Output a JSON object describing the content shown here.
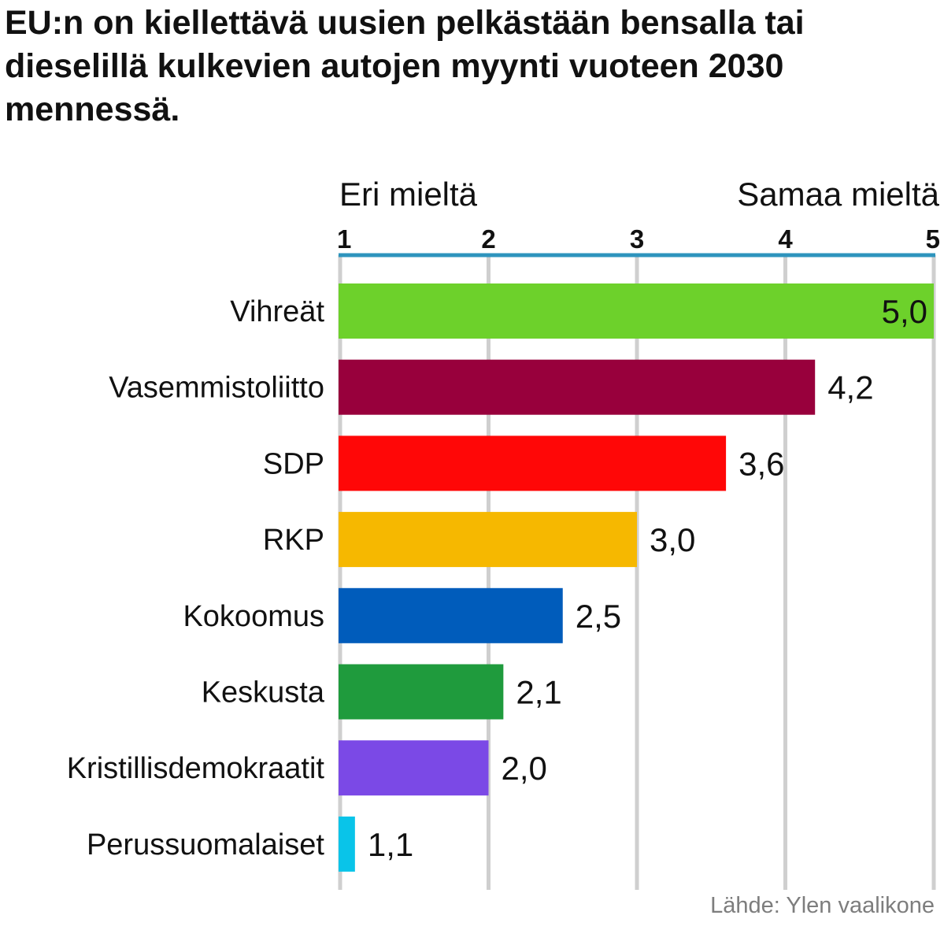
{
  "chart_data": {
    "type": "bar",
    "orientation": "horizontal",
    "title": "EU:n on kiellettävä uusien pelkästään bensalla tai dieselillä kulkevien autojen myynti vuoteen 2030 mennessä.",
    "scale_left_label": "Eri mieltä",
    "scale_right_label": "Samaa mieltä",
    "xlim": [
      1,
      5
    ],
    "ticks": [
      "1",
      "2",
      "3",
      "4",
      "5"
    ],
    "grid": true,
    "categories": [
      "Vihreät",
      "Vasemmistoliitto",
      "SDP",
      "RKP",
      "Kokoomus",
      "Keskusta",
      "Kristillisdemokraatit",
      "Perussuomalaiset"
    ],
    "values": [
      5.0,
      4.2,
      3.6,
      3.0,
      2.5,
      2.1,
      2.0,
      1.1
    ],
    "value_labels": [
      "5,0",
      "4,2",
      "3,6",
      "3,0",
      "2,5",
      "2,1",
      "2,0",
      "1,1"
    ],
    "colors": [
      "#6dd12b",
      "#98003c",
      "#ff0707",
      "#f6b800",
      "#005cbb",
      "#1f9b3d",
      "#7b49e6",
      "#09c4e9"
    ],
    "axis_color": "#2e94bd",
    "grid_color": "#cfcfcf",
    "source": "Lähde: Ylen vaalikone"
  }
}
